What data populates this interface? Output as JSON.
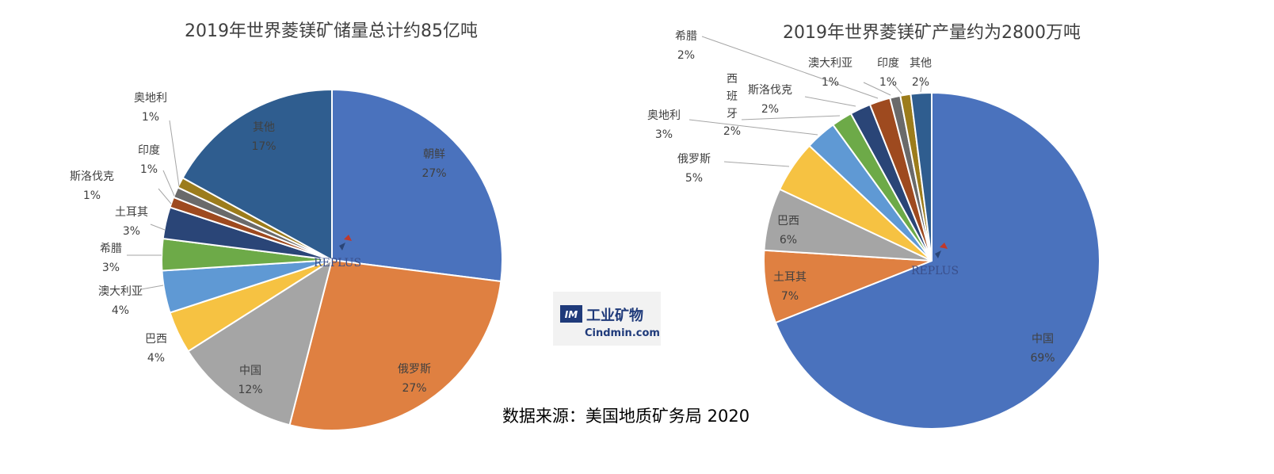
{
  "chart_data": [
    {
      "type": "pie",
      "title": "2019年世界菱镁矿储量总计约85亿吨",
      "slices": [
        {
          "name": "朝鲜",
          "value": 27,
          "label": "27%",
          "color": "#4a72bd"
        },
        {
          "name": "俄罗斯",
          "value": 27,
          "label": "27%",
          "color": "#df8041"
        },
        {
          "name": "中国",
          "value": 12,
          "label": "12%",
          "color": "#a5a5a5"
        },
        {
          "name": "巴西",
          "value": 4,
          "label": "4%",
          "color": "#f6c242"
        },
        {
          "name": "澳大利亚",
          "value": 4,
          "label": "4%",
          "color": "#5f99d4"
        },
        {
          "name": "希腊",
          "value": 3,
          "label": "3%",
          "color": "#6daa48"
        },
        {
          "name": "土耳其",
          "value": 3,
          "label": "3%",
          "color": "#2a4577"
        },
        {
          "name": "斯洛伐克",
          "value": 1,
          "label": "1%",
          "color": "#9e4a1f"
        },
        {
          "name": "印度",
          "value": 1,
          "label": "1%",
          "color": "#6a6a6a"
        },
        {
          "name": "奥地利",
          "value": 1,
          "label": "1%",
          "color": "#9c7c1b"
        },
        {
          "name": "其他",
          "value": 17,
          "label": "17%",
          "color": "#2f5d8f"
        }
      ]
    },
    {
      "type": "pie",
      "title": "2019年世界菱镁矿产量约为2800万吨",
      "slices": [
        {
          "name": "中国",
          "value": 69,
          "label": "69%",
          "color": "#4a72bd"
        },
        {
          "name": "土耳其",
          "value": 7,
          "label": "7%",
          "color": "#df8041"
        },
        {
          "name": "巴西",
          "value": 6,
          "label": "6%",
          "color": "#a5a5a5"
        },
        {
          "name": "俄罗斯",
          "value": 5,
          "label": "5%",
          "color": "#f6c242"
        },
        {
          "name": "奥地利",
          "value": 3,
          "label": "3%",
          "color": "#5f99d4"
        },
        {
          "name": "西班牙",
          "value": 2,
          "label": "2%",
          "color": "#6daa48"
        },
        {
          "name": "斯洛伐克",
          "value": 2,
          "label": "2%",
          "color": "#2a4577"
        },
        {
          "name": "希腊",
          "value": 2,
          "label": "2%",
          "color": "#9e4a1f"
        },
        {
          "name": "澳大利亚",
          "value": 1,
          "label": "1%",
          "color": "#6a6a6a"
        },
        {
          "name": "印度",
          "value": 1,
          "label": "1%",
          "color": "#9c7c1b"
        },
        {
          "name": "其他",
          "value": 2,
          "label": "2%",
          "color": "#2f5d8f"
        }
      ]
    }
  ],
  "source_text": "数据来源：美国地质矿务局 2020",
  "logo": {
    "cn": "工业矿物",
    "en": "Cindmin.com",
    "mark": "IM"
  },
  "watermark": "REPLUS"
}
